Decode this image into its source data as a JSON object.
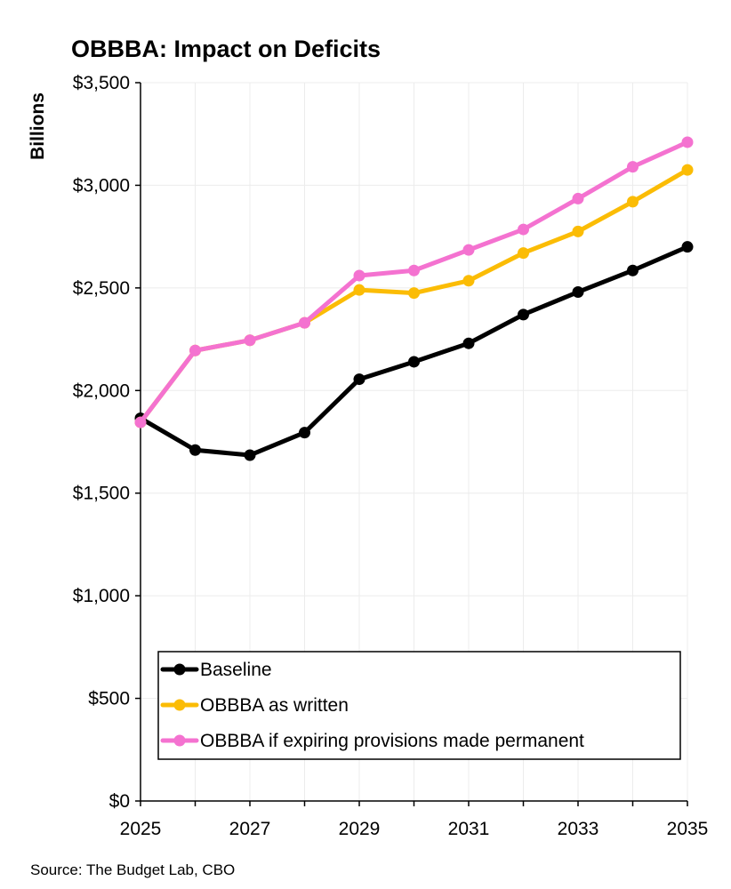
{
  "chart_data": {
    "type": "line",
    "title": "OBBBA: Impact on Deficits",
    "ylabel": "Billions",
    "xlabel": "",
    "source": "Source: The Budget Lab, CBO",
    "x": [
      2025,
      2026,
      2027,
      2028,
      2029,
      2030,
      2031,
      2032,
      2033,
      2034,
      2035
    ],
    "xticks": [
      2025,
      2027,
      2029,
      2031,
      2033,
      2035
    ],
    "xlim": [
      2025,
      2035
    ],
    "ylim": [
      0,
      3500
    ],
    "yticks": [
      0,
      500,
      1000,
      1500,
      2000,
      2500,
      3000,
      3500
    ],
    "ytick_labels": [
      "$0",
      "$500",
      "$1,000",
      "$1,500",
      "$2,000",
      "$2,500",
      "$3,000",
      "$3,500"
    ],
    "grid": true,
    "legend_position": "bottom-right",
    "series": [
      {
        "name": "Baseline",
        "color": "#000000",
        "values": [
          1865,
          1710,
          1685,
          1795,
          2055,
          2140,
          2230,
          2370,
          2480,
          2585,
          2700
        ]
      },
      {
        "name": "OBBBA as written",
        "color": "#FBBC05",
        "values": [
          1845,
          2195,
          2245,
          2330,
          2490,
          2475,
          2535,
          2670,
          2775,
          2920,
          3075
        ]
      },
      {
        "name": "OBBBA if expiring provisions made permanent",
        "color": "#F472D0",
        "values": [
          1845,
          2195,
          2245,
          2330,
          2560,
          2585,
          2685,
          2785,
          2935,
          3090,
          3210
        ]
      }
    ]
  }
}
